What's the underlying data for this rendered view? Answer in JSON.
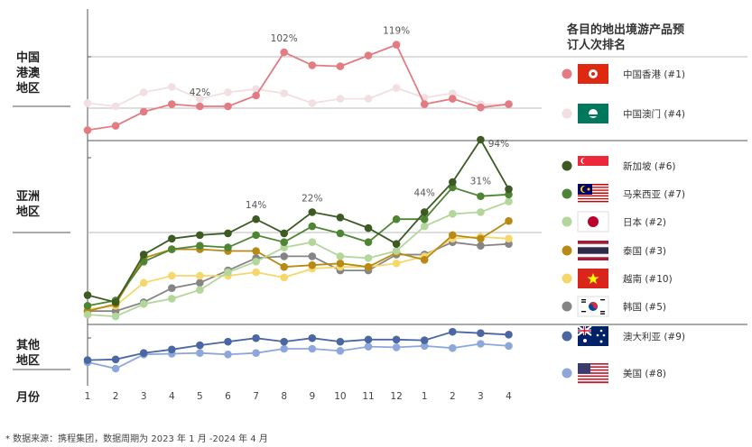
{
  "chart_data": {
    "type": "line",
    "title": "各目的地出境游产品预订人次排名",
    "xlabel": "月份",
    "x": [
      "1",
      "2",
      "3",
      "4",
      "5",
      "6",
      "7",
      "8",
      "9",
      "10",
      "11",
      "12",
      "1",
      "2",
      "3",
      "4"
    ],
    "regions": [
      "中国港澳地区",
      "亚洲地区",
      "其他地区"
    ],
    "series": [
      {
        "name": "中国香港 (#1)",
        "region": "中国港澳地区",
        "color": "#e27b82",
        "flag": "hk",
        "values": [
          13,
          17,
          30,
          37,
          35,
          35,
          45,
          85,
          73,
          72,
          82,
          92,
          37,
          42,
          34,
          37
        ]
      },
      {
        "name": "中国澳门 (#4)",
        "region": "中国港澳地区",
        "color": "#f1dfe1",
        "flag": "mo",
        "values": [
          38,
          35,
          48,
          53,
          42,
          48,
          51,
          47,
          38,
          42,
          42,
          52,
          43,
          47,
          37,
          37
        ]
      },
      {
        "name": "新加坡 (#6)",
        "region": "亚洲地区",
        "color": "#3c5a22",
        "flag": "sg",
        "values": [
          14,
          10,
          37,
          46,
          48,
          49,
          57,
          49,
          61,
          58,
          52,
          43,
          61,
          78,
          102,
          74
        ]
      },
      {
        "name": "马来西亚 (#7)",
        "region": "亚洲地区",
        "color": "#4e8535",
        "flag": "my",
        "values": [
          8,
          11,
          33,
          40,
          42,
          41,
          48,
          44,
          53,
          49,
          44,
          57,
          57,
          75,
          70,
          71
        ]
      },
      {
        "name": "日本 (#2)",
        "region": "亚洲地区",
        "color": "#b3d69b",
        "flag": "jp",
        "values": [
          3,
          2,
          9,
          12,
          17,
          27,
          33,
          41,
          44,
          36,
          35,
          39,
          53,
          60,
          61,
          67
        ]
      },
      {
        "name": "泰国 (#3)",
        "region": "亚洲地区",
        "color": "#b88a15",
        "flag": "th",
        "values": [
          5,
          9,
          35,
          40,
          40,
          39,
          39,
          30,
          31,
          32,
          30,
          38,
          34,
          48,
          46,
          56
        ]
      },
      {
        "name": "越南 (#10)",
        "region": "亚洲地区",
        "color": "#f6d76c",
        "flag": "vn",
        "values": [
          6,
          8,
          21,
          25,
          25,
          25,
          27,
          24,
          29,
          30,
          30,
          32,
          36,
          46,
          47,
          46
        ]
      },
      {
        "name": "韩国 (#5)",
        "region": "亚洲地区",
        "color": "#858585",
        "flag": "kr",
        "values": [
          5,
          5,
          10,
          18,
          21,
          28,
          35,
          36,
          36,
          28,
          28,
          37,
          37,
          44,
          42,
          43
        ]
      },
      {
        "name": "澳大利亚 (#9)",
        "region": "其他地区",
        "color": "#4a66a3",
        "flag": "au",
        "values": [
          26,
          27,
          36,
          41,
          47,
          52,
          57,
          52,
          57,
          52,
          55,
          55,
          54,
          66,
          64,
          62
        ]
      },
      {
        "name": "美国 (#8)",
        "region": "其他地区",
        "color": "#8ea7db",
        "flag": "us",
        "values": [
          23,
          14,
          34,
          35,
          36,
          34,
          36,
          42,
          42,
          39,
          45,
          44,
          46,
          43,
          49,
          46
        ]
      }
    ],
    "annotations": [
      "42%",
      "102%",
      "119%",
      "14%",
      "22%",
      "44%",
      "94%",
      "31%"
    ],
    "legend_title": "各目的地出境游产品预订人次排名",
    "legend_position": "right",
    "grid": false
  },
  "footnote": "* 数据来源：携程集团，数据周期为 2023 年 1 月 -2024 年 4 月"
}
